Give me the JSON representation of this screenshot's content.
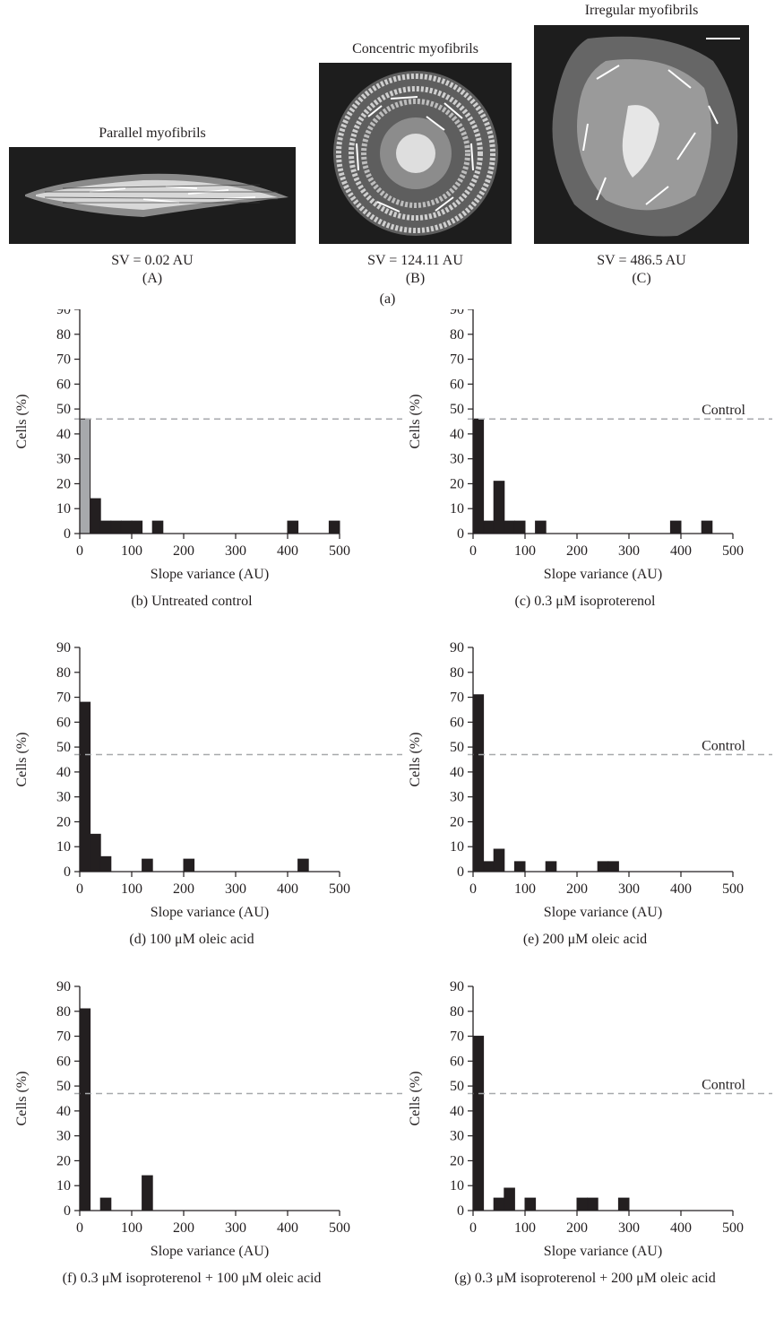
{
  "panel_a": {
    "label": "(a)",
    "images": [
      {
        "title": "Parallel myofibrils",
        "sv": "SV = 0.02 AU",
        "sublabel": "(A)"
      },
      {
        "title": "Concentric myofibrils",
        "sv": "SV = 124.11 AU",
        "sublabel": "(B)"
      },
      {
        "title": "Irregular myofibrils",
        "sv": "SV = 486.5 AU",
        "sublabel": "(C)"
      }
    ]
  },
  "chart_data": [
    {
      "id": "b",
      "type": "bar",
      "caption": "(b) Untreated control",
      "xlabel": "Slope variance (AU)",
      "ylabel": "Cells (%)",
      "xlim": [
        0,
        500
      ],
      "ylim": [
        0,
        90
      ],
      "xticks": [
        0,
        100,
        200,
        300,
        400,
        500
      ],
      "yticks": [
        0,
        10,
        20,
        30,
        40,
        50,
        60,
        70,
        80,
        90
      ],
      "bin_width": 20,
      "control_line": 46,
      "control_label": "",
      "bars": [
        {
          "x": 0,
          "y": 46,
          "highlight": true
        },
        {
          "x": 20,
          "y": 14
        },
        {
          "x": 40,
          "y": 5
        },
        {
          "x": 60,
          "y": 5
        },
        {
          "x": 80,
          "y": 5
        },
        {
          "x": 100,
          "y": 5
        },
        {
          "x": 140,
          "y": 5
        },
        {
          "x": 400,
          "y": 5
        },
        {
          "x": 480,
          "y": 5
        }
      ],
      "colors": {
        "bar": "#231f20",
        "highlight": "#a7a9ac",
        "control": "#a7a9ac"
      }
    },
    {
      "id": "c",
      "type": "bar",
      "caption": "(c) 0.3 μM isoproterenol",
      "xlabel": "Slope variance (AU)",
      "ylabel": "Cells (%)",
      "xlim": [
        0,
        500
      ],
      "ylim": [
        0,
        90
      ],
      "xticks": [
        0,
        100,
        200,
        300,
        400,
        500
      ],
      "yticks": [
        0,
        10,
        20,
        30,
        40,
        50,
        60,
        70,
        80,
        90
      ],
      "bin_width": 20,
      "control_line": 46,
      "control_label": "Control",
      "bars": [
        {
          "x": 0,
          "y": 46
        },
        {
          "x": 20,
          "y": 5
        },
        {
          "x": 40,
          "y": 21
        },
        {
          "x": 60,
          "y": 5
        },
        {
          "x": 80,
          "y": 5
        },
        {
          "x": 120,
          "y": 5
        },
        {
          "x": 380,
          "y": 5
        },
        {
          "x": 440,
          "y": 5
        }
      ],
      "colors": {
        "bar": "#231f20",
        "highlight": "#a7a9ac",
        "control": "#a7a9ac"
      }
    },
    {
      "id": "d",
      "type": "bar",
      "caption": "(d) 100 μM oleic acid",
      "xlabel": "Slope variance (AU)",
      "ylabel": "Cells (%)",
      "xlim": [
        0,
        500
      ],
      "ylim": [
        0,
        90
      ],
      "xticks": [
        0,
        100,
        200,
        300,
        400,
        500
      ],
      "yticks": [
        0,
        10,
        20,
        30,
        40,
        50,
        60,
        70,
        80,
        90
      ],
      "bin_width": 20,
      "control_line": 47,
      "control_label": "",
      "bars": [
        {
          "x": 0,
          "y": 68
        },
        {
          "x": 20,
          "y": 15
        },
        {
          "x": 40,
          "y": 6
        },
        {
          "x": 120,
          "y": 5
        },
        {
          "x": 200,
          "y": 5
        },
        {
          "x": 420,
          "y": 5
        }
      ],
      "colors": {
        "bar": "#231f20",
        "highlight": "#a7a9ac",
        "control": "#a7a9ac"
      }
    },
    {
      "id": "e",
      "type": "bar",
      "caption": "(e) 200 μM oleic acid",
      "xlabel": "Slope variance (AU)",
      "ylabel": "Cells (%)",
      "xlim": [
        0,
        500
      ],
      "ylim": [
        0,
        90
      ],
      "xticks": [
        0,
        100,
        200,
        300,
        400,
        500
      ],
      "yticks": [
        0,
        10,
        20,
        30,
        40,
        50,
        60,
        70,
        80,
        90
      ],
      "bin_width": 20,
      "control_line": 47,
      "control_label": "Control",
      "bars": [
        {
          "x": 0,
          "y": 71
        },
        {
          "x": 20,
          "y": 4
        },
        {
          "x": 40,
          "y": 9
        },
        {
          "x": 80,
          "y": 4
        },
        {
          "x": 140,
          "y": 4
        },
        {
          "x": 240,
          "y": 4
        },
        {
          "x": 260,
          "y": 4
        }
      ],
      "colors": {
        "bar": "#231f20",
        "highlight": "#a7a9ac",
        "control": "#a7a9ac"
      }
    },
    {
      "id": "f",
      "type": "bar",
      "caption": "(f) 0.3 μM isoproterenol + 100 μM oleic acid",
      "xlabel": "Slope variance (AU)",
      "ylabel": "Cells (%)",
      "xlim": [
        0,
        500
      ],
      "ylim": [
        0,
        90
      ],
      "xticks": [
        0,
        100,
        200,
        300,
        400,
        500
      ],
      "yticks": [
        0,
        10,
        20,
        30,
        40,
        50,
        60,
        70,
        80,
        90
      ],
      "bin_width": 20,
      "control_line": 47,
      "control_label": "",
      "bars": [
        {
          "x": 0,
          "y": 81
        },
        {
          "x": 40,
          "y": 5
        },
        {
          "x": 120,
          "y": 14
        }
      ],
      "colors": {
        "bar": "#231f20",
        "highlight": "#a7a9ac",
        "control": "#a7a9ac"
      }
    },
    {
      "id": "g",
      "type": "bar",
      "caption": "(g) 0.3 μM isoproterenol + 200 μM oleic acid",
      "xlabel": "Slope variance (AU)",
      "ylabel": "Cells (%)",
      "xlim": [
        0,
        500
      ],
      "ylim": [
        0,
        90
      ],
      "xticks": [
        0,
        100,
        200,
        300,
        400,
        500
      ],
      "yticks": [
        0,
        10,
        20,
        30,
        40,
        50,
        60,
        70,
        80,
        90
      ],
      "bin_width": 20,
      "control_line": 47,
      "control_label": "Control",
      "bars": [
        {
          "x": 0,
          "y": 70
        },
        {
          "x": 40,
          "y": 5
        },
        {
          "x": 60,
          "y": 9
        },
        {
          "x": 100,
          "y": 5
        },
        {
          "x": 200,
          "y": 5
        },
        {
          "x": 220,
          "y": 5
        },
        {
          "x": 280,
          "y": 5
        }
      ],
      "colors": {
        "bar": "#231f20",
        "highlight": "#a7a9ac",
        "control": "#a7a9ac"
      }
    }
  ]
}
